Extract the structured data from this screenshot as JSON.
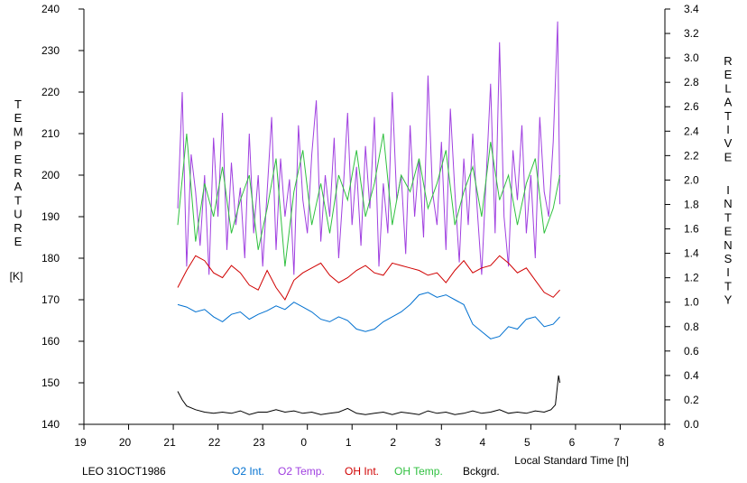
{
  "chart_data": {
    "type": "line",
    "station_label": "LEO 31OCT1986",
    "xlabel": "Local Standard Time [h]",
    "x_ticks": [
      "19",
      "20",
      "21",
      "22",
      "23",
      "0",
      "1",
      "2",
      "3",
      "4",
      "5",
      "6",
      "7",
      "8"
    ],
    "y_left_label_letters": [
      "T",
      "E",
      "M",
      "P",
      "E",
      "R",
      "A",
      "T",
      "U",
      "R",
      "E"
    ],
    "y_left_unit": "[K]",
    "y_left_ticks": [
      "140",
      "150",
      "160",
      "170",
      "180",
      "190",
      "200",
      "210",
      "220",
      "230",
      "240"
    ],
    "y_left_range": [
      140,
      240
    ],
    "y_right_label_word1": [
      "R",
      "E",
      "L",
      "A",
      "T",
      "I",
      "V",
      "E"
    ],
    "y_right_label_word2": [
      "I",
      "N",
      "T",
      "E",
      "N",
      "S",
      "I",
      "T",
      "Y"
    ],
    "y_right_ticks": [
      "0.0",
      "0.2",
      "0.4",
      "0.6",
      "0.8",
      "1.0",
      "1.2",
      "1.4",
      "1.6",
      "1.8",
      "2.0",
      "2.2",
      "2.4",
      "2.6",
      "2.8",
      "3.0",
      "3.2",
      "3.4"
    ],
    "y_right_range": [
      0,
      3.4
    ],
    "x_range_hours": [
      19,
      32
    ],
    "grid": false,
    "legend_position": "bottom",
    "series": [
      {
        "name": "O2 Int.",
        "color": "#0070d0",
        "axis": "right",
        "x": [
          21.1,
          21.3,
          21.5,
          21.7,
          21.9,
          22.1,
          22.3,
          22.5,
          22.7,
          22.9,
          23.1,
          23.3,
          23.5,
          23.7,
          23.9,
          24.1,
          24.3,
          24.5,
          24.7,
          24.9,
          25.1,
          25.3,
          25.5,
          25.7,
          25.9,
          26.1,
          26.3,
          26.5,
          26.7,
          26.9,
          27.1,
          27.3,
          27.5,
          27.7,
          27.9,
          28.1,
          28.3,
          28.5,
          28.7,
          28.9,
          29.1,
          29.3,
          29.5,
          29.65
        ],
        "y": [
          0.98,
          0.96,
          0.92,
          0.94,
          0.88,
          0.84,
          0.9,
          0.92,
          0.86,
          0.9,
          0.93,
          0.97,
          0.94,
          1.0,
          0.96,
          0.92,
          0.86,
          0.84,
          0.88,
          0.85,
          0.78,
          0.76,
          0.78,
          0.84,
          0.88,
          0.92,
          0.98,
          1.06,
          1.08,
          1.04,
          1.06,
          1.02,
          0.98,
          0.82,
          0.76,
          0.7,
          0.72,
          0.8,
          0.78,
          0.86,
          0.88,
          0.8,
          0.82,
          0.88
        ]
      },
      {
        "name": "O2 Temp.",
        "color": "#a040e0",
        "axis": "left",
        "x": [
          21.1,
          21.2,
          21.3,
          21.4,
          21.5,
          21.6,
          21.7,
          21.8,
          21.9,
          22.0,
          22.1,
          22.2,
          22.3,
          22.4,
          22.5,
          22.6,
          22.7,
          22.8,
          22.9,
          23.0,
          23.1,
          23.2,
          23.3,
          23.4,
          23.5,
          23.6,
          23.7,
          23.8,
          23.9,
          24.0,
          24.1,
          24.2,
          24.3,
          24.4,
          24.5,
          24.6,
          24.7,
          24.8,
          24.9,
          25.0,
          25.1,
          25.2,
          25.3,
          25.4,
          25.5,
          25.6,
          25.7,
          25.8,
          25.9,
          26.0,
          26.1,
          26.2,
          26.3,
          26.4,
          26.5,
          26.6,
          26.7,
          26.8,
          26.9,
          27.0,
          27.1,
          27.2,
          27.3,
          27.4,
          27.5,
          27.6,
          27.7,
          27.8,
          27.9,
          28.0,
          28.1,
          28.2,
          28.3,
          28.4,
          28.5,
          28.6,
          28.7,
          28.8,
          28.9,
          29.0,
          29.1,
          29.2,
          29.3,
          29.4,
          29.5,
          29.6,
          29.65
        ],
        "y": [
          192,
          220,
          178,
          205,
          196,
          183,
          200,
          176,
          209,
          190,
          215,
          182,
          203,
          188,
          197,
          180,
          210,
          186,
          200,
          178,
          196,
          214,
          182,
          204,
          190,
          199,
          176,
          212,
          194,
          186,
          205,
          218,
          184,
          200,
          190,
          209,
          180,
          196,
          215,
          188,
          202,
          183,
          207,
          192,
          214,
          178,
          198,
          186,
          220,
          194,
          200,
          181,
          212,
          190,
          204,
          185,
          224,
          196,
          188,
          208,
          182,
          216,
          196,
          179,
          204,
          188,
          210,
          192,
          176,
          199,
          222,
          186,
          232,
          190,
          178,
          206,
          194,
          212,
          186,
          200,
          180,
          214,
          196,
          190,
          208,
          237,
          193
        ]
      },
      {
        "name": "OH Int.",
        "color": "#d00000",
        "axis": "right",
        "x": [
          21.1,
          21.3,
          21.5,
          21.7,
          21.9,
          22.1,
          22.3,
          22.5,
          22.7,
          22.9,
          23.1,
          23.3,
          23.5,
          23.7,
          23.9,
          24.1,
          24.3,
          24.5,
          24.7,
          24.9,
          25.1,
          25.3,
          25.5,
          25.7,
          25.9,
          26.1,
          26.3,
          26.5,
          26.7,
          26.9,
          27.1,
          27.3,
          27.5,
          27.7,
          27.9,
          28.1,
          28.3,
          28.5,
          28.7,
          28.9,
          29.1,
          29.3,
          29.5,
          29.65
        ],
        "y": [
          1.12,
          1.26,
          1.38,
          1.34,
          1.24,
          1.2,
          1.3,
          1.24,
          1.14,
          1.1,
          1.26,
          1.12,
          1.02,
          1.18,
          1.24,
          1.28,
          1.32,
          1.22,
          1.16,
          1.2,
          1.26,
          1.3,
          1.24,
          1.22,
          1.32,
          1.3,
          1.28,
          1.26,
          1.22,
          1.24,
          1.16,
          1.26,
          1.34,
          1.24,
          1.28,
          1.3,
          1.38,
          1.32,
          1.24,
          1.28,
          1.18,
          1.08,
          1.04,
          1.1
        ]
      },
      {
        "name": "OH Temp.",
        "color": "#30c040",
        "axis": "left",
        "x": [
          21.1,
          21.3,
          21.5,
          21.7,
          21.9,
          22.1,
          22.3,
          22.5,
          22.7,
          22.9,
          23.1,
          23.3,
          23.5,
          23.7,
          23.9,
          24.1,
          24.3,
          24.5,
          24.7,
          24.9,
          25.1,
          25.3,
          25.5,
          25.7,
          25.9,
          26.1,
          26.3,
          26.5,
          26.7,
          26.9,
          27.1,
          27.3,
          27.5,
          27.7,
          27.9,
          28.1,
          28.3,
          28.5,
          28.7,
          28.9,
          29.1,
          29.3,
          29.5,
          29.65
        ],
        "y": [
          188,
          210,
          184,
          198,
          190,
          202,
          186,
          194,
          200,
          182,
          192,
          204,
          178,
          196,
          206,
          188,
          198,
          186,
          200,
          194,
          206,
          190,
          198,
          210,
          188,
          200,
          196,
          204,
          192,
          198,
          206,
          188,
          196,
          202,
          190,
          208,
          194,
          200,
          188,
          198,
          204,
          186,
          192,
          200
        ]
      },
      {
        "name": "Bckgrd.",
        "color": "#000000",
        "axis": "right",
        "x": [
          21.1,
          21.2,
          21.3,
          21.5,
          21.7,
          21.9,
          22.1,
          22.3,
          22.5,
          22.7,
          22.9,
          23.1,
          23.3,
          23.5,
          23.7,
          23.9,
          24.1,
          24.3,
          24.5,
          24.7,
          24.9,
          25.1,
          25.3,
          25.5,
          25.7,
          25.9,
          26.1,
          26.3,
          26.5,
          26.7,
          26.9,
          27.1,
          27.3,
          27.5,
          27.7,
          27.9,
          28.1,
          28.3,
          28.5,
          28.7,
          28.9,
          29.1,
          29.3,
          29.45,
          29.55,
          29.62,
          29.65
        ],
        "y": [
          0.27,
          0.2,
          0.15,
          0.12,
          0.1,
          0.09,
          0.1,
          0.09,
          0.11,
          0.08,
          0.1,
          0.1,
          0.12,
          0.1,
          0.11,
          0.09,
          0.1,
          0.08,
          0.09,
          0.1,
          0.13,
          0.09,
          0.08,
          0.09,
          0.1,
          0.08,
          0.1,
          0.09,
          0.08,
          0.11,
          0.09,
          0.1,
          0.08,
          0.09,
          0.11,
          0.09,
          0.1,
          0.12,
          0.09,
          0.1,
          0.09,
          0.11,
          0.1,
          0.12,
          0.16,
          0.4,
          0.34
        ]
      }
    ]
  }
}
